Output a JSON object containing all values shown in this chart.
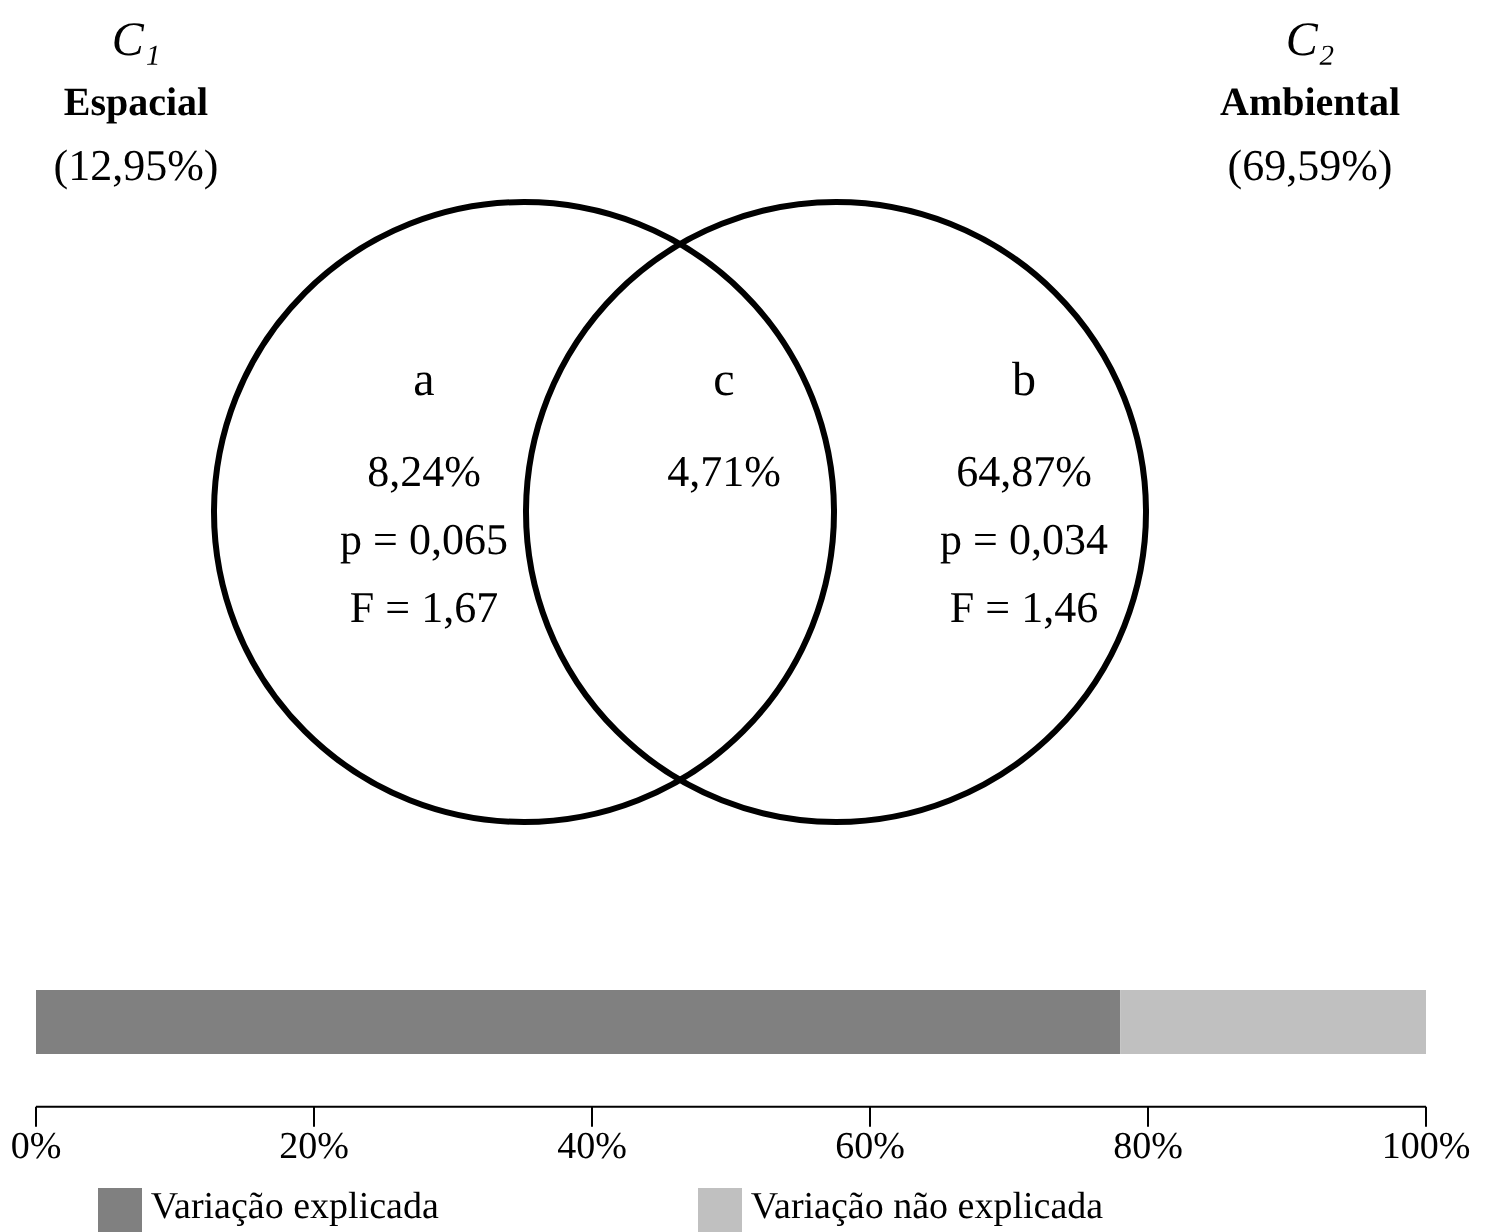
{
  "chart_data": [
    {
      "type": "other",
      "annotations": [
        "C₁",
        "Espacial",
        "(12,95%)",
        "C₂",
        "Ambiental",
        "(69,59%)",
        "a",
        "8,24%",
        "p = 0,065",
        "F = 1,67",
        "c",
        "4,71%",
        "b",
        "64,87%",
        "p = 0,034",
        "F = 1,46"
      ]
    },
    {
      "type": "bar",
      "orientation": "horizontal",
      "stacked": true,
      "categories": [
        null
      ],
      "series": [
        {
          "name": "Variação explicada",
          "color": "#808080",
          "values": [
            78
          ]
        },
        {
          "name": "Variação não explicada",
          "color": "#c0c0c0",
          "values": [
            22
          ]
        }
      ],
      "xlim": [
        0,
        100
      ],
      "xticks": [
        {
          "value": 0,
          "label": "0%"
        },
        {
          "value": 20,
          "label": "20%"
        },
        {
          "value": 40,
          "label": "40%"
        },
        {
          "value": 60,
          "label": "60%"
        },
        {
          "value": 80,
          "label": "80%"
        },
        {
          "value": 100,
          "label": "100%"
        }
      ],
      "tick_labels": "x",
      "grid": false,
      "legend": "bottom"
    }
  ]
}
